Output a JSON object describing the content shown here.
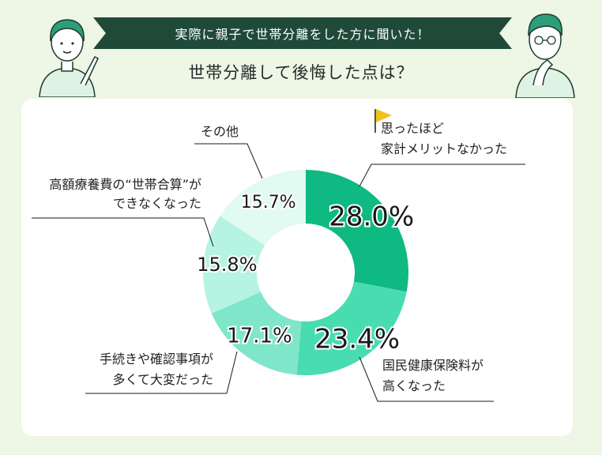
{
  "header": {
    "banner": "実際に親子で世帯分離をした方に聞いた！",
    "question": "世帯分離して後悔した点は？"
  },
  "colors": {
    "background": "#eef6e6",
    "banner": "#1f4a3a",
    "slices": [
      "#0fba82",
      "#48dcb0",
      "#80e6c9",
      "#b6f3e2",
      "#e1faf2"
    ],
    "flag": "#f2c21b"
  },
  "chart_data": {
    "type": "pie",
    "donut": true,
    "categories": [
      "思ったほど家計メリットなかった",
      "国民健康保険料が高くなった",
      "手続きや確認事項が多くて大変だった",
      "高額療養費の“世帯合算”ができなくなった",
      "その他"
    ],
    "values": [
      28.0,
      23.4,
      17.1,
      15.8,
      15.7
    ],
    "value_labels": [
      "28.0%",
      "23.4%",
      "17.1%",
      "15.8%",
      "15.7%"
    ],
    "label_lines": [
      [
        "思ったほど",
        "家計メリットなかった"
      ],
      [
        "国民健康保険料が",
        "高くなった"
      ],
      [
        "手続きや確認事項が",
        "多くて大変だった"
      ],
      [
        "高額療養費の“世帯合算”が",
        "できなくなった"
      ],
      [
        "その他"
      ]
    ]
  }
}
